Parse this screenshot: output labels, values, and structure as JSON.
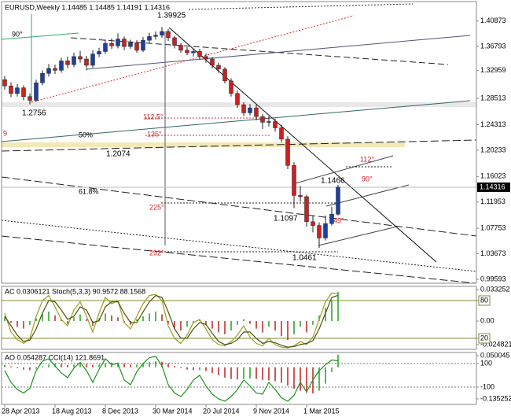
{
  "chart_data": [
    {
      "type": "candlestick",
      "title": "EURUSD,Weekly  1.14485 1.14485 1.14191 1.14316",
      "categories": [
        "28 Apr 2013",
        null,
        null,
        null,
        null,
        null,
        null,
        null,
        "18 Aug 2013",
        null,
        null,
        null,
        null,
        null,
        null,
        null,
        "8 Dec 2013",
        null,
        null,
        null,
        null,
        null,
        null,
        null,
        "30 Mar 2014",
        null,
        null,
        null,
        null,
        null,
        null,
        null,
        "20 Jul 2014",
        null,
        null,
        null,
        null,
        null,
        null,
        null,
        "9 Nov 2014",
        null,
        null,
        null,
        null,
        null,
        null,
        null,
        "1 Mar 2015",
        null,
        null,
        null,
        null,
        null
      ],
      "open": [
        1.315,
        1.305,
        1.293,
        1.302,
        1.288,
        1.282,
        1.31,
        1.325,
        1.333,
        1.33,
        1.345,
        1.339,
        1.352,
        1.348,
        1.338,
        1.356,
        1.36,
        1.373,
        1.369,
        1.38,
        1.368,
        1.374,
        1.362,
        1.378,
        1.384,
        1.386,
        1.392,
        1.382,
        1.37,
        1.362,
        1.358,
        1.36,
        1.352,
        1.348,
        1.338,
        1.332,
        1.313,
        1.293,
        1.275,
        1.262,
        1.27,
        1.256,
        1.247,
        1.248,
        1.238,
        1.22,
        1.178,
        1.13,
        1.128,
        1.088,
        1.082,
        1.062,
        1.085,
        1.1
      ],
      "high": [
        1.321,
        1.311,
        1.308,
        1.306,
        1.293,
        1.315,
        1.33,
        1.34,
        1.339,
        1.35,
        1.352,
        1.358,
        1.361,
        1.353,
        1.362,
        1.366,
        1.379,
        1.381,
        1.389,
        1.384,
        1.379,
        1.378,
        1.383,
        1.39,
        1.392,
        1.3993,
        1.396,
        1.385,
        1.374,
        1.367,
        1.365,
        1.364,
        1.357,
        1.351,
        1.342,
        1.335,
        1.317,
        1.298,
        1.279,
        1.276,
        1.275,
        1.26,
        1.257,
        1.253,
        1.243,
        1.225,
        1.183,
        1.145,
        1.131,
        1.098,
        1.087,
        1.098,
        1.112,
        1.1467
      ],
      "low": [
        1.299,
        1.287,
        1.288,
        1.282,
        1.2756,
        1.28,
        1.306,
        1.32,
        1.324,
        1.326,
        1.333,
        1.335,
        1.342,
        1.33,
        1.334,
        1.351,
        1.356,
        1.364,
        1.365,
        1.362,
        1.364,
        1.358,
        1.359,
        1.374,
        1.379,
        1.382,
        1.377,
        1.365,
        1.358,
        1.354,
        1.352,
        1.347,
        1.342,
        1.333,
        1.326,
        1.309,
        1.288,
        1.27,
        1.257,
        1.258,
        1.25,
        1.236,
        1.24,
        1.232,
        1.215,
        1.172,
        1.1097,
        1.12,
        1.08,
        1.071,
        1.0461,
        1.058,
        1.082,
        1.098
      ],
      "close": [
        1.305,
        1.293,
        1.302,
        1.288,
        1.282,
        1.31,
        1.325,
        1.333,
        1.33,
        1.345,
        1.339,
        1.352,
        1.348,
        1.338,
        1.356,
        1.36,
        1.373,
        1.369,
        1.38,
        1.368,
        1.374,
        1.362,
        1.378,
        1.384,
        1.386,
        1.392,
        1.382,
        1.37,
        1.362,
        1.358,
        1.36,
        1.352,
        1.348,
        1.338,
        1.332,
        1.313,
        1.293,
        1.275,
        1.262,
        1.27,
        1.256,
        1.247,
        1.248,
        1.238,
        1.22,
        1.178,
        1.13,
        1.128,
        1.088,
        1.082,
        1.062,
        1.085,
        1.1,
        1.1432
      ],
      "up_color": "#1f3f9f",
      "down_color": "#cc2020",
      "ylim": [
        0.9897,
        1.4398
      ],
      "yticks": [
        1.40873,
        1.36793,
        1.32959,
        1.28513,
        1.24313,
        1.20233,
        1.16023,
        1.11953,
        1.07753,
        1.03673,
        0.99593
      ],
      "last_price": 1.14316,
      "annotations": [
        "1.39925",
        "1.2756",
        "1.2074",
        "1.1097",
        "1.1466",
        "1.0461",
        "90°",
        "112.5°",
        "135°",
        "225°",
        "292°",
        "50%",
        "61.8%",
        "45°",
        "112°",
        "90°",
        "9"
      ]
    },
    {
      "type": "oscillator",
      "title": "AC 0.0306121  Stoch(5,3,3) 90.9572 88.1568",
      "histogram": {
        "values": [
          0.004,
          -0.002,
          -0.006,
          -0.008,
          -0.004,
          0.003,
          0.008,
          0.01,
          0.006,
          0.002,
          -0.003,
          0.004,
          0.007,
          0.002,
          -0.005,
          0.003,
          0.008,
          0.006,
          0.004,
          -0.002,
          -0.004,
          0.002,
          0.005,
          0.008,
          0.01,
          0.007,
          -0.003,
          -0.008,
          -0.01,
          -0.006,
          -0.002,
          0.001,
          -0.004,
          -0.008,
          -0.012,
          -0.014,
          -0.01,
          -0.004,
          0.002,
          -0.003,
          -0.008,
          -0.012,
          -0.006,
          -0.01,
          -0.016,
          -0.02,
          -0.014,
          -0.006,
          -0.012,
          -0.004,
          0.006,
          0.014,
          0.022,
          0.0306121
        ],
        "up_color": "#20a020",
        "down_color": "#c02020"
      },
      "series": [
        {
          "color": "#9aa020",
          "axis": "y2",
          "values": [
            60,
            30,
            18,
            12,
            20,
            55,
            80,
            88,
            70,
            50,
            40,
            65,
            78,
            55,
            30,
            60,
            85,
            75,
            80,
            45,
            35,
            55,
            75,
            88,
            90,
            80,
            40,
            20,
            12,
            25,
            45,
            50,
            35,
            18,
            10,
            8,
            15,
            25,
            40,
            22,
            12,
            8,
            20,
            10,
            6,
            5,
            8,
            15,
            10,
            22,
            50,
            78,
            92,
            90.9572
          ]
        },
        {
          "color": "#505010",
          "axis": "y2",
          "values": [
            55,
            40,
            25,
            15,
            17,
            35,
            60,
            80,
            78,
            65,
            50,
            55,
            70,
            65,
            45,
            48,
            70,
            78,
            78,
            60,
            45,
            45,
            62,
            78,
            88,
            85,
            62,
            35,
            20,
            20,
            35,
            45,
            42,
            28,
            15,
            10,
            12,
            18,
            30,
            30,
            20,
            12,
            15,
            13,
            9,
            6,
            7,
            10,
            12,
            16,
            35,
            60,
            85,
            88.1568
          ]
        }
      ],
      "ylim": [
        -0.0299,
        0.0366
      ],
      "yticks": [
        0.033252,
        {
          "value": 0,
          "label": "0.00"
        },
        -0.024821
      ],
      "y2lim": [
        2.5,
        102.5
      ],
      "y2ticks": [
        80,
        20
      ]
    },
    {
      "type": "oscillator",
      "title": "AO 0.054287  CCI(14) 121.8691",
      "histogram": {
        "values": [
          0.01,
          0.004,
          -0.004,
          -0.01,
          -0.012,
          -0.006,
          0.004,
          0.012,
          0.016,
          0.014,
          0.01,
          0.012,
          0.016,
          0.014,
          0.01,
          0.012,
          0.018,
          0.02,
          0.02,
          0.016,
          0.012,
          0.012,
          0.016,
          0.022,
          0.026,
          0.024,
          0.016,
          0.006,
          -0.004,
          -0.01,
          -0.012,
          -0.012,
          -0.016,
          -0.024,
          -0.034,
          -0.044,
          -0.05,
          -0.052,
          -0.05,
          -0.048,
          -0.05,
          -0.054,
          -0.056,
          -0.06,
          -0.066,
          -0.078,
          -0.092,
          -0.1,
          -0.11,
          -0.112,
          -0.1,
          -0.07,
          -0.02,
          0.054287
        ],
        "up_color": "#20a020",
        "down_color": "#c02020"
      },
      "series": [
        {
          "color": "#209020",
          "axis": "y2",
          "values": [
            40,
            -60,
            -120,
            -150,
            -110,
            40,
            120,
            140,
            80,
            20,
            -20,
            60,
            110,
            40,
            -60,
            50,
            140,
            90,
            100,
            -40,
            -80,
            30,
            100,
            150,
            160,
            80,
            -80,
            -150,
            -180,
            -120,
            -40,
            0,
            -90,
            -160,
            -200,
            -220,
            -180,
            -120,
            -40,
            -90,
            -150,
            -160,
            -60,
            -120,
            -190,
            -220,
            -170,
            -60,
            -140,
            -40,
            40,
            90,
            130,
            121.8691
          ]
        }
      ],
      "ylim": [
        -0.1589,
        0.0635
      ],
      "yticks": [
        0.050045,
        -0.135252
      ],
      "y2lim": [
        -246.7,
        193.3
      ],
      "y2ticks": [
        100,
        -100
      ]
    }
  ]
}
